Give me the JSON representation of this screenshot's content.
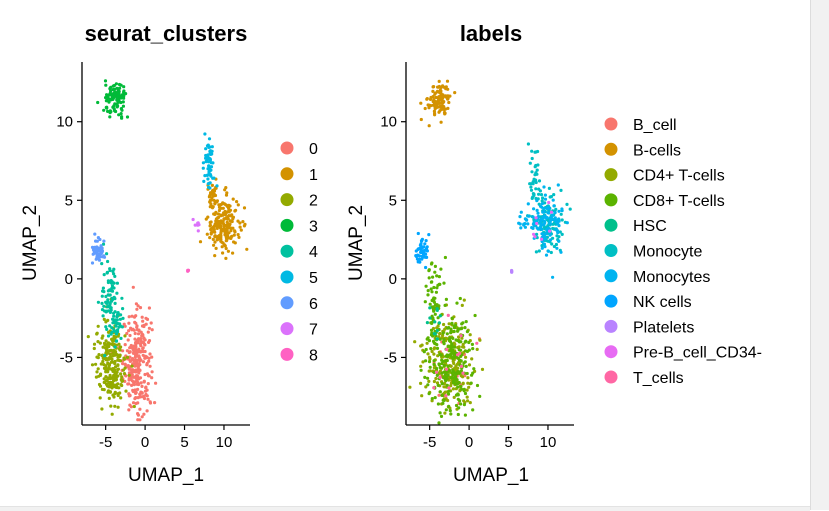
{
  "chart_data": [
    {
      "type": "scatter",
      "title": "seurat_clusters",
      "xlabel": "UMAP_1",
      "ylabel": "UMAP_2",
      "xlim": [
        -8,
        13.3
      ],
      "ylim": [
        -9.3,
        13.8
      ],
      "xticks": [
        -5,
        0,
        5,
        10
      ],
      "yticks": [
        -5,
        0,
        5,
        10
      ],
      "legend": "right",
      "series": [
        {
          "name": "0",
          "color": "#F8766D",
          "clusters": [
            {
              "cx": -1.0,
              "cy": -5.3,
              "sx": 0.9,
              "sy": 1.6,
              "n": 280
            }
          ]
        },
        {
          "name": "1",
          "color": "#D39200",
          "clusters": [
            {
              "cx": 9.9,
              "cy": 3.5,
              "sx": 1.0,
              "sy": 0.9,
              "n": 200
            },
            {
              "cx": 8.6,
              "cy": 5.5,
              "sx": 0.3,
              "sy": 0.5,
              "n": 25
            }
          ]
        },
        {
          "name": "2",
          "color": "#93AA00",
          "clusters": [
            {
              "cx": -4.3,
              "cy": -5.4,
              "sx": 1.0,
              "sy": 1.3,
              "n": 230
            }
          ]
        },
        {
          "name": "3",
          "color": "#00BA38",
          "clusters": [
            {
              "cx": -3.8,
              "cy": 11.4,
              "sx": 0.7,
              "sy": 0.55,
              "n": 110
            }
          ]
        },
        {
          "name": "4",
          "color": "#00C19F",
          "clusters": [
            {
              "cx": -4.4,
              "cy": -1.3,
              "sx": 0.55,
              "sy": 1.2,
              "n": 80
            },
            {
              "cx": -3.6,
              "cy": -3.0,
              "sx": 0.5,
              "sy": 0.6,
              "n": 35
            }
          ]
        },
        {
          "name": "5",
          "color": "#00B9E3",
          "clusters": [
            {
              "cx": 8.1,
              "cy": 7.3,
              "sx": 0.3,
              "sy": 0.8,
              "n": 55
            }
          ]
        },
        {
          "name": "6",
          "color": "#619CFF",
          "clusters": [
            {
              "cx": -5.9,
              "cy": 1.8,
              "sx": 0.4,
              "sy": 0.4,
              "n": 50
            }
          ]
        },
        {
          "name": "7",
          "color": "#DB72FB",
          "clusters": [
            {
              "cx": 6.5,
              "cy": 3.6,
              "sx": 0.3,
              "sy": 0.2,
              "n": 8
            }
          ]
        },
        {
          "name": "8",
          "color": "#FF61C3",
          "clusters": [
            {
              "cx": 5.4,
              "cy": 0.5,
              "sx": 0.06,
              "sy": 0.06,
              "n": 4
            }
          ]
        }
      ]
    },
    {
      "type": "scatter",
      "title": "labels",
      "xlabel": "UMAP_1",
      "ylabel": "UMAP_2",
      "xlim": [
        -8,
        13.3
      ],
      "ylim": [
        -9.3,
        13.8
      ],
      "xticks": [
        -5,
        0,
        5,
        10
      ],
      "yticks": [
        -5,
        0,
        5,
        10
      ],
      "legend": "right",
      "series": [
        {
          "name": "B_cell",
          "color": "#F8766D",
          "clusters": [
            {
              "cx": -2.5,
              "cy": -5.5,
              "sx": 1.5,
              "sy": 1.5,
              "n": 15
            }
          ]
        },
        {
          "name": "B-cells",
          "color": "#D39200",
          "clusters": [
            {
              "cx": -3.8,
              "cy": 11.4,
              "sx": 0.7,
              "sy": 0.55,
              "n": 110
            }
          ]
        },
        {
          "name": "CD4+ T-cells",
          "color": "#93AA00",
          "clusters": [
            {
              "cx": -2.6,
              "cy": -5.4,
              "sx": 1.6,
              "sy": 1.5,
              "n": 220
            }
          ]
        },
        {
          "name": "CD8+ T-cells",
          "color": "#5BB300",
          "clusters": [
            {
              "cx": -2.5,
              "cy": -5.3,
              "sx": 1.5,
              "sy": 1.6,
              "n": 230
            },
            {
              "cx": -4.5,
              "cy": -1.6,
              "sx": 0.55,
              "sy": 1.4,
              "n": 60
            }
          ]
        },
        {
          "name": "HSC",
          "color": "#00C08B",
          "clusters": [
            {
              "cx": -4.0,
              "cy": -3.0,
              "sx": 0.6,
              "sy": 0.8,
              "n": 12
            }
          ]
        },
        {
          "name": "Monocyte",
          "color": "#00BFC4",
          "clusters": [
            {
              "cx": 9.9,
              "cy": 3.6,
              "sx": 1.0,
              "sy": 0.9,
              "n": 110
            },
            {
              "cx": 8.3,
              "cy": 6.5,
              "sx": 0.4,
              "sy": 1.1,
              "n": 40
            }
          ]
        },
        {
          "name": "Monocytes",
          "color": "#00B4F0",
          "clusters": [
            {
              "cx": 9.9,
              "cy": 3.4,
              "sx": 1.0,
              "sy": 0.9,
              "n": 100
            },
            {
              "cx": 7.5,
              "cy": 3.5,
              "sx": 0.8,
              "sy": 0.3,
              "n": 20
            }
          ]
        },
        {
          "name": "NK cells",
          "color": "#00A5FF",
          "clusters": [
            {
              "cx": -5.9,
              "cy": 1.8,
              "sx": 0.4,
              "sy": 0.4,
              "n": 50
            }
          ]
        },
        {
          "name": "Platelets",
          "color": "#B983FF",
          "clusters": [
            {
              "cx": 5.4,
              "cy": 0.5,
              "sx": 0.06,
              "sy": 0.06,
              "n": 4
            }
          ]
        },
        {
          "name": "Pre-B_cell_CD34-",
          "color": "#E76BF3",
          "clusters": [
            {
              "cx": 9.5,
              "cy": 3.5,
              "sx": 0.9,
              "sy": 0.8,
              "n": 8
            }
          ]
        },
        {
          "name": "T_cells",
          "color": "#FF67A4",
          "clusters": [
            {
              "cx": -2.5,
              "cy": -5.5,
              "sx": 1.5,
              "sy": 1.5,
              "n": 14
            }
          ]
        }
      ]
    }
  ]
}
